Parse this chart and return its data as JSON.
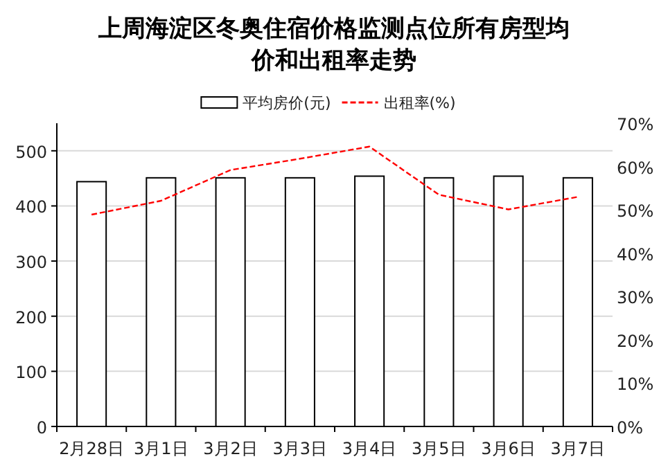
{
  "chart_data": {
    "type": "bar",
    "title": "上周海淀区冬奥住宿价格监测点位所有房型均价和出租率走势",
    "categories": [
      "2月28日",
      "3月1日",
      "3月2日",
      "3月3日",
      "3月4日",
      "3月5日",
      "3月6日",
      "3月7日"
    ],
    "series": [
      {
        "name": "平均房价(元)",
        "color": "#ffffff",
        "values": [
          444,
          451,
          451,
          451,
          454,
          451,
          454,
          451
        ]
      },
      {
        "name": "出租率(%)",
        "type": "line",
        "axis": "y2",
        "color": "#ff0000",
        "line_style": "dashed",
        "values": [
          48.9,
          52.1,
          59.2,
          61.8,
          64.6,
          53.5,
          50.1,
          53.0
        ]
      }
    ],
    "ylim": [
      0,
      550
    ],
    "yticks": [
      0,
      100,
      200,
      300,
      400,
      500
    ],
    "y2lim": [
      0,
      70
    ],
    "y2ticks": [
      {
        "value": 0,
        "label": "0%"
      },
      {
        "value": 10,
        "label": "10%"
      },
      {
        "value": 20,
        "label": "20%"
      },
      {
        "value": 30,
        "label": "30%"
      },
      {
        "value": 40,
        "label": "40%"
      },
      {
        "value": 50,
        "label": "50%"
      },
      {
        "value": 60,
        "label": "60%"
      },
      {
        "value": 70,
        "label": "70%"
      }
    ],
    "grid": "y",
    "legend": "top"
  }
}
